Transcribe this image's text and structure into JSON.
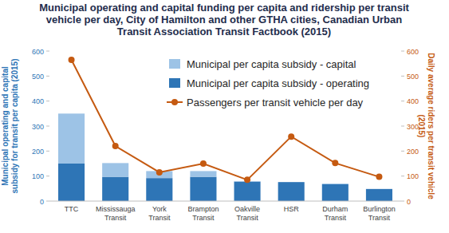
{
  "chart_data": {
    "type": "bar",
    "title": "Municipal operating and capital funding per capita and ridership per transit vehicle per day, City of Hamilton and other GTHA cities, Canadian Urban Transit Association Transit Factbook (2015)",
    "y_label": "Municipal operating and capital subsidy for transit per capita (2015)",
    "y2_label": "Daily average riders per transit vehicle (2015)",
    "categories": [
      "TTC",
      "Mississauga Transit",
      "York Transit",
      "Brampton Transit",
      "Oakville Transit",
      "HSR",
      "Durham Transit",
      "Burlington Transit"
    ],
    "stacked": true,
    "grid": false,
    "legend": "upper right",
    "ylim": [
      0,
      600
    ],
    "yticks": [
      0,
      100,
      200,
      300,
      400,
      500,
      600
    ],
    "y2lim": [
      0,
      600
    ],
    "y2ticks": [
      0,
      100,
      200,
      300,
      400,
      500,
      600
    ],
    "series": [
      {
        "name": "Municipal per capita subsidy - operating",
        "type": "bar",
        "color": "#2e75b6",
        "values": [
          150,
          97,
          92,
          97,
          78,
          76,
          67,
          48
        ]
      },
      {
        "name": "Municipal per capita subsidy - capital",
        "type": "bar",
        "color": "#9dc3e6",
        "values": [
          200,
          55,
          28,
          23,
          2,
          0,
          3,
          1
        ]
      },
      {
        "name": "Passengers per transit vehicle per day",
        "type": "line",
        "axis": "y2",
        "color": "#c55a11",
        "marker": "circle",
        "values": [
          565,
          220,
          115,
          150,
          85,
          258,
          152,
          97
        ]
      }
    ]
  }
}
